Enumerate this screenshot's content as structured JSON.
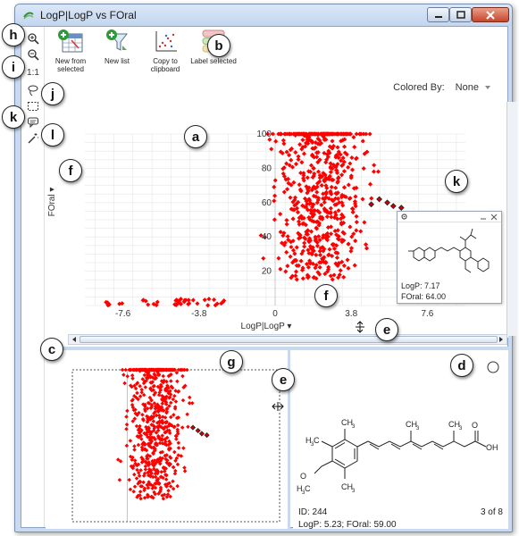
{
  "window": {
    "title": "LogP|LogP vs FOral"
  },
  "toolbar": {
    "buttons": [
      {
        "label": "New from selected",
        "icon": "table-add-icon"
      },
      {
        "label": "New list",
        "icon": "filter-list-icon"
      },
      {
        "label": "Copy to clipboard",
        "icon": "chart-copy-icon"
      },
      {
        "label": "Label selected",
        "icon": "label-icon"
      }
    ]
  },
  "left_tools": {
    "zoom_ratio": "1:1"
  },
  "colored_by": {
    "label": "Colored By:",
    "value": "None"
  },
  "callouts": {
    "a": "a",
    "b": "b",
    "c": "c",
    "d": "d",
    "e": "e",
    "f": "f",
    "g": "g",
    "h": "h",
    "i": "i",
    "j": "j",
    "k": "k",
    "l": "l"
  },
  "chart_data": {
    "type": "scatter",
    "xlabel": "LogP|LogP",
    "ylabel": "FOral",
    "x_ticks": [
      "-7.6",
      "-3.8",
      "0",
      "3.8",
      "7.6"
    ],
    "y_ticks": [
      "20",
      "40",
      "60",
      "80",
      "100"
    ],
    "xlim": [
      -9.5,
      9.5
    ],
    "ylim": [
      0,
      100
    ],
    "color": "#ff0000",
    "selected_color": "#cc0000"
  },
  "tooltip": {
    "logp": "LogP: 7.17",
    "foral": "FOral: 64.00"
  },
  "detail": {
    "id": "ID: 244",
    "page": "3 of 8",
    "values": "LogP: 5.23; FOral: 59.00"
  }
}
